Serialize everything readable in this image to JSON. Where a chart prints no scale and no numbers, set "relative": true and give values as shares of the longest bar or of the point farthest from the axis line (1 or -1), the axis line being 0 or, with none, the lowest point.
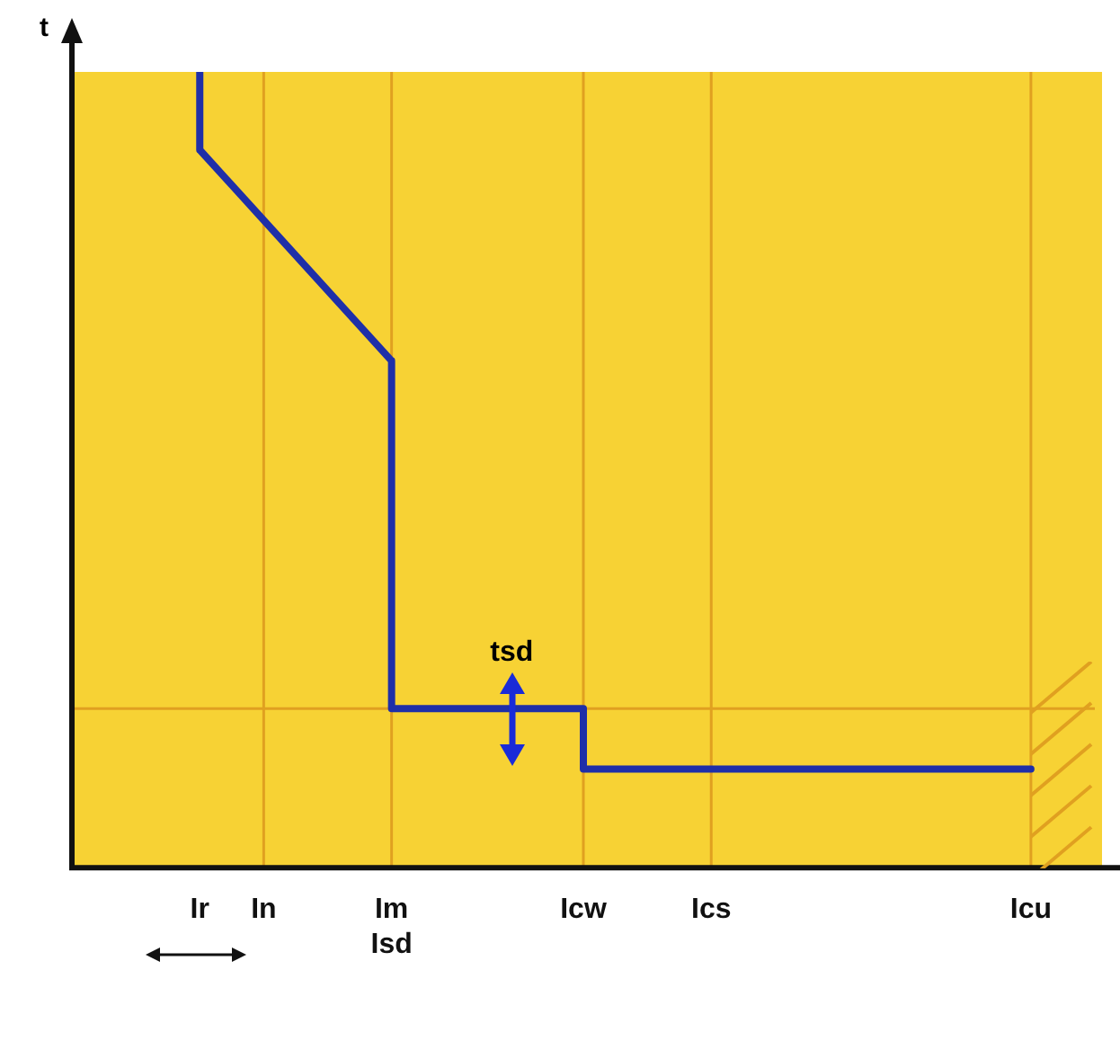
{
  "chart_data": {
    "type": "line",
    "relative": true,
    "ylabel": "t",
    "categories": [
      null,
      null,
      "Ir",
      "In",
      null,
      "Im\nIsd",
      null,
      null,
      "Icw",
      null,
      "Ics",
      null,
      null,
      null,
      null,
      "Icu",
      null
    ],
    "series": [
      {
        "color": "#1f2fa8",
        "x": [
          "Ir",
          "Ir",
          "Im\nIsd",
          "Im\nIsd",
          "Icw",
          "Icw",
          "Icu"
        ],
        "values": [
          1.0,
          0.902,
          0.637,
          0.2,
          0.2,
          0.124,
          0.124
        ]
      }
    ],
    "ref_lines": [
      {
        "axis": "x",
        "value": "In",
        "color": "#e0a020"
      },
      {
        "axis": "x",
        "value": "Im\nIsd",
        "color": "#e0a020"
      },
      {
        "axis": "x",
        "value": "Icw",
        "color": "#e0a020"
      },
      {
        "axis": "x",
        "value": "Ics",
        "color": "#e0a020"
      },
      {
        "axis": "x",
        "value": "Icu",
        "color": "#e0a020"
      },
      {
        "axis": "y",
        "value": 0.2,
        "color": "#e0a020"
      }
    ],
    "annotations": [
      "tsd"
    ],
    "marker": "none",
    "grid": false,
    "legend": false
  }
}
